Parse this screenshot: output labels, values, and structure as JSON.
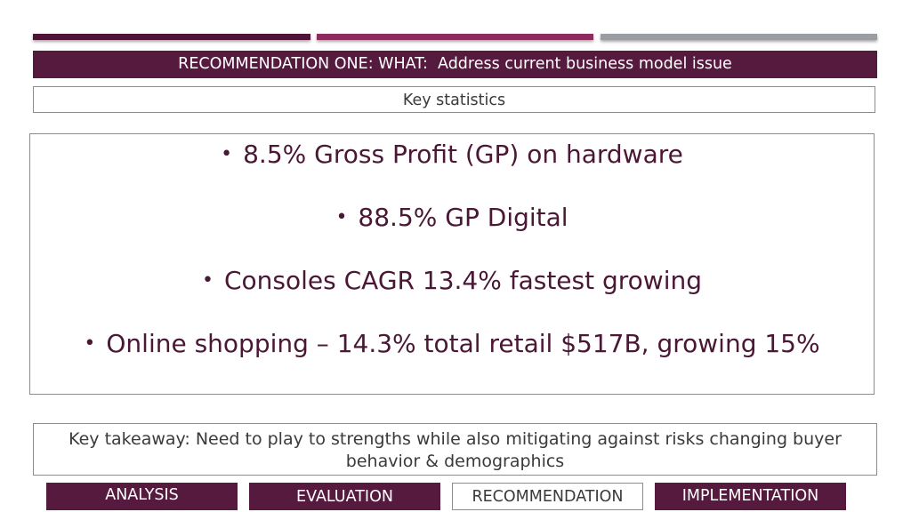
{
  "colors": {
    "accent_dark": "#561a3f",
    "accent_mid": "#8c2b5c",
    "accent_gray": "#9a9ea3",
    "stat_text": "#4a1735"
  },
  "header": {
    "title": "RECOMMENDATION ONE: WHAT:  Address current business model issue"
  },
  "stats_section": {
    "label": "Key statistics",
    "bullet_glyph": "•",
    "items": [
      "8.5% Gross Profit (GP) on hardware",
      "88.5% GP Digital",
      "Consoles CAGR 13.4% fastest growing",
      "Online shopping – 14.3% total retail $517B, growing 15%"
    ]
  },
  "takeaway": {
    "text": "Key takeaway: Need to play to strengths while also mitigating against risks changing buyer behavior & demographics"
  },
  "nav": {
    "tabs": [
      {
        "label": "ANALYSIS",
        "active": false
      },
      {
        "label": "EVALUATION",
        "active": false
      },
      {
        "label": "RECOMMENDATION",
        "active": true
      },
      {
        "label": "IMPLEMENTATION",
        "active": false
      }
    ]
  }
}
